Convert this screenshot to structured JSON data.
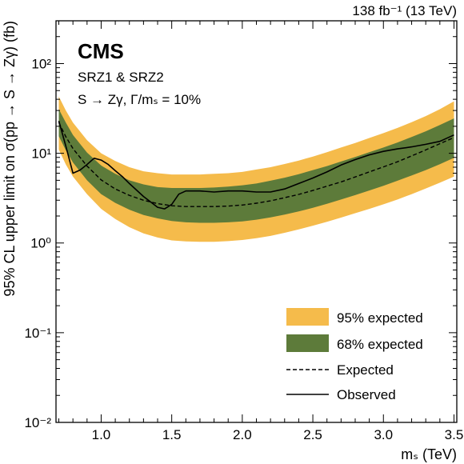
{
  "chart_data": {
    "type": "line",
    "lumi_label": "138 fb⁻¹ (13 TeV)",
    "experiment": "CMS",
    "annotations": [
      "SRZ1 & SRZ2",
      "S → Zγ,  Γ/mₛ = 10%"
    ],
    "xlabel": "mₛ (TeV)",
    "ylabel": "95% CL upper limit on σ(pp → S → Zγ) (fb)",
    "xlim": [
      0.68,
      3.52
    ],
    "ylim": [
      0.01,
      300
    ],
    "yscale": "log",
    "x_ticks": [
      "1.0",
      "1.5",
      "2.0",
      "2.5",
      "3.0",
      "3.5"
    ],
    "y_ticks": [
      "10⁻²",
      "10⁻¹",
      "10⁰",
      "10¹",
      "10²"
    ],
    "legend_position": "bottom-right",
    "x": [
      0.7,
      0.75,
      0.8,
      0.9,
      1.0,
      1.1,
      1.2,
      1.3,
      1.4,
      1.5,
      1.6,
      1.7,
      1.8,
      1.9,
      2.0,
      2.1,
      2.2,
      2.3,
      2.4,
      2.5,
      2.6,
      2.7,
      2.8,
      2.9,
      3.0,
      3.1,
      3.2,
      3.3,
      3.4,
      3.5
    ],
    "series": [
      {
        "name": "95% expected",
        "color": "#f5bb4b",
        "upper": [
          43,
          30,
          22,
          14,
          10,
          8.2,
          7,
          6.3,
          6,
          5.8,
          5.8,
          5.8,
          5.9,
          6,
          6.2,
          6.6,
          7,
          7.6,
          8.3,
          9.2,
          10.3,
          11.6,
          13,
          14.8,
          16.8,
          19.2,
          22.2,
          26,
          31,
          38
        ],
        "lower": [
          11,
          7.5,
          5.5,
          3.5,
          2.4,
          1.85,
          1.5,
          1.28,
          1.15,
          1.07,
          1.04,
          1.03,
          1.03,
          1.05,
          1.08,
          1.13,
          1.2,
          1.3,
          1.42,
          1.56,
          1.72,
          1.92,
          2.15,
          2.4,
          2.7,
          3.05,
          3.5,
          4.05,
          4.7,
          5.5
        ]
      },
      {
        "name": "68% expected",
        "color": "#5d7b3a",
        "upper": [
          31,
          22,
          16,
          10.2,
          7.3,
          5.9,
          5,
          4.5,
          4.2,
          4.1,
          4.1,
          4.1,
          4.15,
          4.25,
          4.4,
          4.6,
          4.95,
          5.35,
          5.85,
          6.5,
          7.2,
          8.1,
          9.1,
          10.3,
          11.6,
          13.2,
          15.2,
          17.6,
          20.7,
          24.5
        ],
        "lower": [
          15.5,
          10.8,
          7.9,
          5,
          3.5,
          2.8,
          2.35,
          2.05,
          1.88,
          1.76,
          1.7,
          1.68,
          1.68,
          1.7,
          1.74,
          1.82,
          1.93,
          2.07,
          2.25,
          2.47,
          2.73,
          3.05,
          3.42,
          3.85,
          4.35,
          4.95,
          5.65,
          6.5,
          7.55,
          8.9
        ]
      },
      {
        "name": "Expected",
        "style": "dashed",
        "values": [
          22,
          15.3,
          11.3,
          7.2,
          5.05,
          4,
          3.4,
          3,
          2.75,
          2.6,
          2.55,
          2.55,
          2.55,
          2.58,
          2.65,
          2.78,
          2.95,
          3.2,
          3.48,
          3.85,
          4.3,
          4.8,
          5.45,
          6.2,
          7.05,
          8.05,
          9.35,
          10.9,
          12.8,
          15
        ]
      },
      {
        "name": "Observed",
        "style": "solid",
        "x": [
          0.7,
          0.75,
          0.8,
          0.85,
          0.9,
          0.95,
          1.0,
          1.05,
          1.1,
          1.15,
          1.2,
          1.3,
          1.4,
          1.45,
          1.5,
          1.55,
          1.6,
          1.7,
          1.8,
          1.9,
          2.0,
          2.1,
          2.2,
          2.3,
          2.4,
          2.5,
          2.6,
          2.7,
          2.8,
          2.9,
          3.0,
          3.1,
          3.2,
          3.3,
          3.4,
          3.5
        ],
        "values": [
          23,
          12,
          6,
          6.5,
          7.5,
          8.8,
          8.4,
          7.5,
          6.4,
          5.5,
          4.6,
          3.3,
          2.5,
          2.4,
          2.7,
          3.5,
          3.8,
          3.8,
          3.7,
          3.8,
          3.8,
          3.7,
          3.7,
          4,
          4.6,
          5.3,
          6.2,
          7.4,
          8.5,
          9.6,
          10.5,
          11.2,
          11.8,
          12.6,
          13.6,
          16
        ]
      }
    ]
  }
}
